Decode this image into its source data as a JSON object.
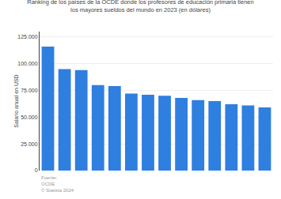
{
  "chart_data": {
    "type": "bar",
    "title": "Ranking de los países de la OCDE donde los profesores de educación primaria tienen\nlos mayores sueldos del mundo en 2023 (en dólares)",
    "ylabel": "Salario anual en USD",
    "categories": [
      null,
      null,
      null,
      null,
      null,
      null,
      null,
      null,
      null,
      null,
      null,
      null,
      null,
      null
    ],
    "values": [
      116000,
      95000,
      94000,
      80000,
      79000,
      72000,
      71000,
      70000,
      68000,
      66000,
      65000,
      62000,
      61000,
      59000
    ],
    "color": "#2f7fe0",
    "ylim": [
      0,
      130000
    ],
    "yticks": [
      0,
      {
        "value": 25000,
        "label": "25.000"
      },
      {
        "value": 50000,
        "label": "50.000"
      },
      {
        "value": 75000,
        "label": "75.000"
      },
      {
        "value": 100000,
        "label": "100.000"
      },
      {
        "value": 125000,
        "label": "125.000"
      }
    ],
    "grid": true,
    "tick_labels": "y",
    "annotations": [
      "Fuente:\nOCDE\n© Statista 2024"
    ]
  }
}
